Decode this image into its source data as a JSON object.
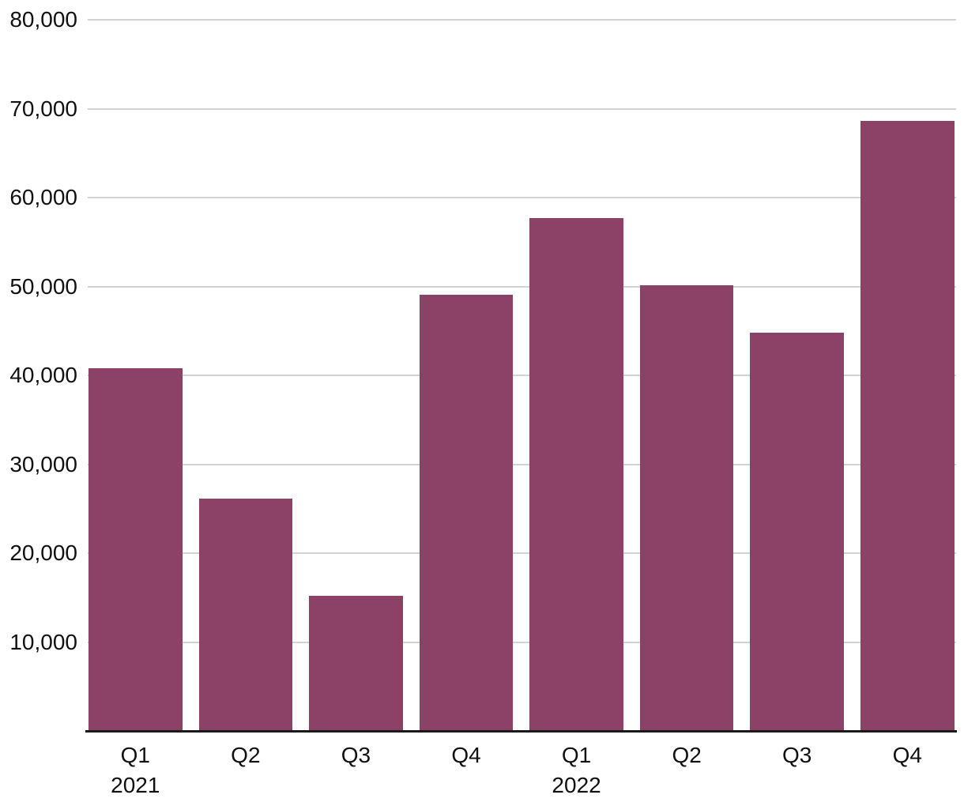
{
  "chart_data": {
    "type": "bar",
    "title": "",
    "xlabel": "",
    "ylabel": "",
    "categories": [
      "Q1",
      "Q2",
      "Q3",
      "Q4",
      "Q1",
      "Q2",
      "Q3",
      "Q4"
    ],
    "values": [
      40800,
      26100,
      15200,
      49100,
      57700,
      50100,
      44800,
      68600
    ],
    "year_annotations": [
      {
        "label": "2021",
        "category_index": 0
      },
      {
        "label": "2022",
        "category_index": 4
      }
    ],
    "ylim": [
      0,
      80000
    ],
    "y_ticks": [
      {
        "value": 10000,
        "label": "10,000"
      },
      {
        "value": 20000,
        "label": "20,000"
      },
      {
        "value": 30000,
        "label": "30,000"
      },
      {
        "value": 40000,
        "label": "40,000"
      },
      {
        "value": 50000,
        "label": "50,000"
      },
      {
        "value": 60000,
        "label": "60,000"
      },
      {
        "value": 70000,
        "label": "70,000"
      },
      {
        "value": 80000,
        "label": "80,000"
      }
    ],
    "grid": "horizontal-only",
    "legend": "none",
    "colors": {
      "bar": "#8C4166",
      "gridline": "#D2D2D2",
      "axis_line": "#1A1A1A",
      "label_text": "#111111",
      "background": "#FFFFFF"
    }
  }
}
